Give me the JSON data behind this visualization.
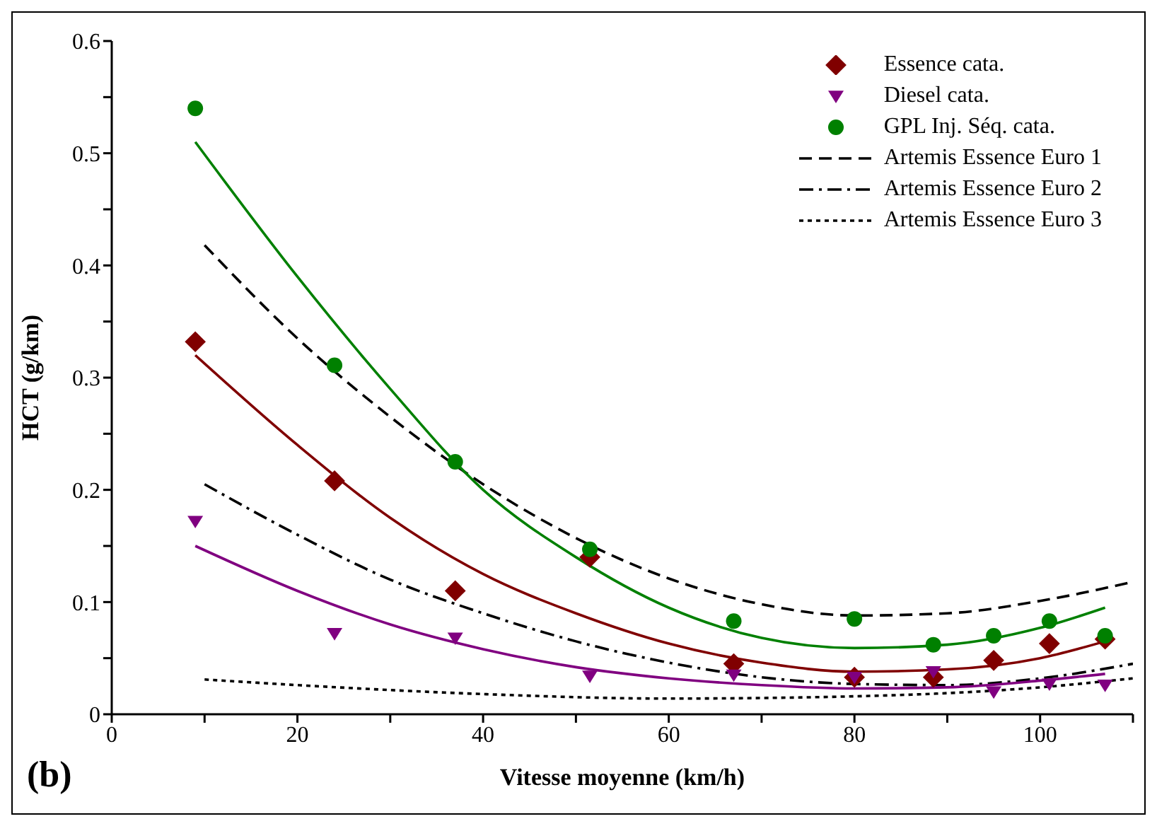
{
  "chart_data": {
    "type": "scatter",
    "xlabel": "Vitesse moyenne (km/h)",
    "ylabel": "HCT (g/km)",
    "annotations": [
      "(b)"
    ],
    "xlim": [
      0,
      110
    ],
    "xticks": [
      0,
      {
        "value": 10,
        "label": null
      },
      20,
      {
        "value": 30,
        "label": null
      },
      40,
      {
        "value": 50,
        "label": null
      },
      60,
      {
        "value": 70,
        "label": null
      },
      80,
      {
        "value": 90,
        "label": null
      },
      100,
      {
        "value": 110,
        "label": null
      }
    ],
    "ylim": [
      0,
      0.6
    ],
    "yticks": [
      0.0,
      {
        "value": 0.05,
        "label": null
      },
      0.1,
      {
        "value": 0.15,
        "label": null
      },
      0.2,
      {
        "value": 0.25,
        "label": null
      },
      0.3,
      {
        "value": 0.35,
        "label": null
      },
      0.4,
      {
        "value": 0.45,
        "label": null
      },
      0.5,
      {
        "value": 0.55,
        "label": null
      },
      0.6
    ],
    "grid": false,
    "legend": "top right",
    "series": [
      {
        "name": "Essence cata.",
        "marker": "diamond",
        "color": "#800000",
        "x": [
          9,
          24,
          37,
          51.5,
          67,
          80,
          88.5,
          95,
          101,
          107
        ],
        "values": [
          0.332,
          0.208,
          0.11,
          0.14,
          0.045,
          0.033,
          0.033,
          0.048,
          0.063,
          0.067
        ]
      },
      {
        "name": "Diesel cata.",
        "marker": "triangle",
        "color": "#800080",
        "x": [
          9,
          24,
          37,
          51.5,
          67,
          80,
          88.5,
          95,
          101,
          107
        ],
        "values": [
          0.172,
          0.072,
          0.068,
          0.034,
          0.035,
          0.033,
          0.038,
          0.02,
          0.027,
          0.026
        ]
      },
      {
        "name": "GPL Inj. Séq. cata.",
        "marker": "circle",
        "color": "#008000",
        "x": [
          9,
          24,
          37,
          51.5,
          67,
          80,
          88.5,
          95,
          101,
          107
        ],
        "values": [
          0.54,
          0.311,
          0.225,
          0.147,
          0.083,
          0.085,
          0.062,
          0.07,
          0.083,
          0.07
        ]
      },
      {
        "name": "Artemis Essence Euro 1",
        "type": "line",
        "line_style": "dashed",
        "color": "#000000",
        "x": [
          10,
          20,
          30,
          40,
          50,
          60,
          70,
          80,
          90,
          100,
          110
        ],
        "values": [
          0.418,
          0.335,
          0.265,
          0.205,
          0.157,
          0.121,
          0.098,
          0.088,
          0.09,
          0.101,
          0.118
        ]
      },
      {
        "name": "Artemis Essence Euro 2",
        "type": "line",
        "line_style": "dashdot",
        "color": "#000000",
        "x": [
          10,
          20,
          30,
          40,
          50,
          60,
          70,
          80,
          90,
          100,
          110
        ],
        "values": [
          0.205,
          0.16,
          0.12,
          0.09,
          0.065,
          0.046,
          0.033,
          0.027,
          0.026,
          0.032,
          0.045
        ]
      },
      {
        "name": "Artemis Essence Euro 3",
        "type": "line",
        "line_style": "dotted",
        "color": "#000000",
        "x": [
          10,
          20,
          40,
          60,
          80,
          100,
          110
        ],
        "values": [
          0.031,
          0.026,
          0.018,
          0.014,
          0.016,
          0.024,
          0.032
        ]
      },
      {
        "type": "line",
        "line_style": "solid",
        "color": "#008000",
        "x": [
          9,
          20,
          30,
          40,
          50,
          60,
          70,
          80,
          90,
          100,
          107
        ],
        "values": [
          0.51,
          0.39,
          0.29,
          0.2,
          0.14,
          0.095,
          0.068,
          0.059,
          0.062,
          0.077,
          0.095
        ]
      },
      {
        "type": "line",
        "line_style": "solid",
        "color": "#800000",
        "x": [
          9,
          20,
          30,
          40,
          50,
          60,
          70,
          80,
          90,
          100,
          107
        ],
        "values": [
          0.32,
          0.24,
          0.175,
          0.125,
          0.09,
          0.063,
          0.046,
          0.038,
          0.04,
          0.05,
          0.065
        ]
      },
      {
        "type": "line",
        "line_style": "solid",
        "color": "#800080",
        "x": [
          9,
          20,
          30,
          40,
          50,
          60,
          70,
          80,
          90,
          100,
          107
        ],
        "values": [
          0.15,
          0.11,
          0.08,
          0.058,
          0.042,
          0.032,
          0.026,
          0.023,
          0.024,
          0.03,
          0.036
        ]
      }
    ]
  }
}
